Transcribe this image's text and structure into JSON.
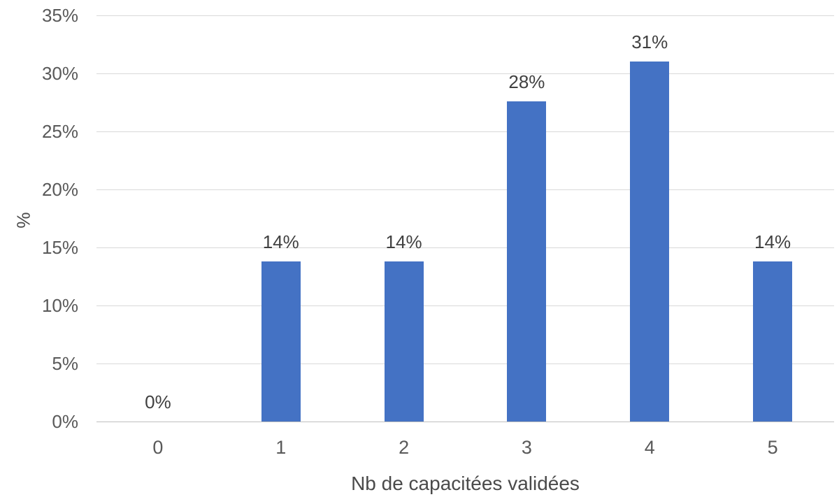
{
  "chart_data": {
    "type": "bar",
    "title": "",
    "xlabel": "Nb de capacitées validées",
    "ylabel": "%",
    "categories": [
      "0",
      "1",
      "2",
      "3",
      "4",
      "5"
    ],
    "values": [
      0,
      13.8,
      13.8,
      27.6,
      31,
      13.8
    ],
    "bar_labels": [
      "0%",
      "14%",
      "14%",
      "28%",
      "31%",
      "14%"
    ],
    "ylim": [
      0,
      35
    ],
    "ytick_step": 5,
    "ytick_labels": [
      "0%",
      "5%",
      "10%",
      "15%",
      "20%",
      "25%",
      "30%",
      "35%"
    ],
    "grid": true,
    "legend": false,
    "colors": {
      "bar": "#4472C4",
      "gridline": "#D9D9D9",
      "axis_line": "#BFBFBF",
      "tick_label": "#595959",
      "data_label": "#404040",
      "background": "#ffffff"
    }
  }
}
